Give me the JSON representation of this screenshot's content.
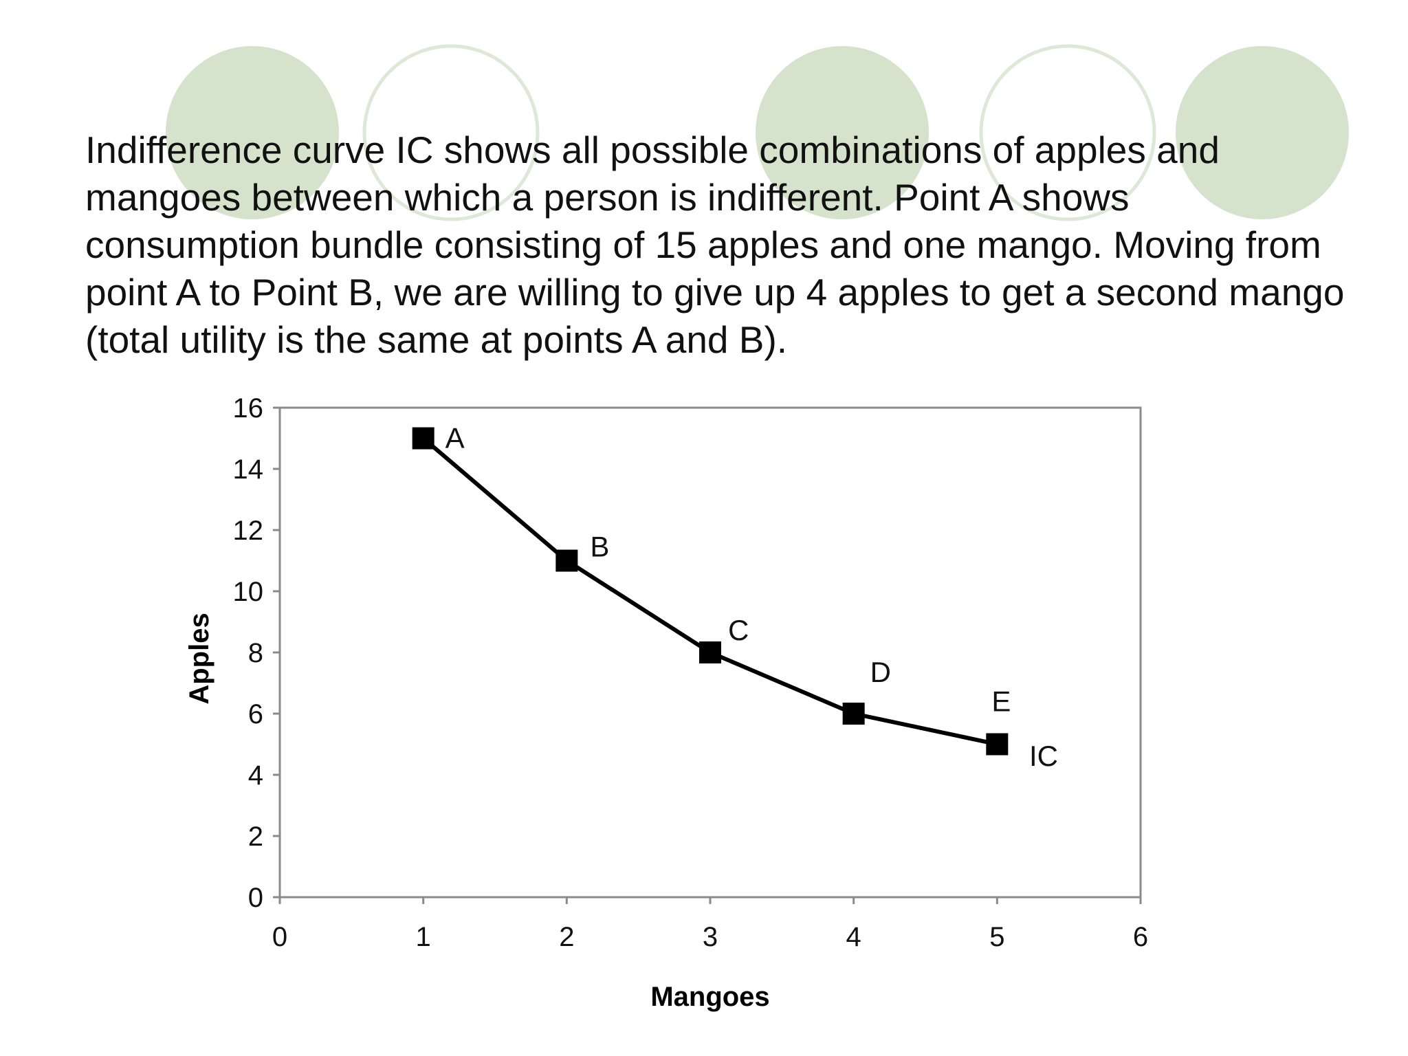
{
  "slide": {
    "body_text": "Indifference curve IC shows all possible combinations of apples and mangoes between which a person is indifferent. Point A shows consumption bundle consisting of 15 apples and one mango. Moving from point A to Point B, we are willing to give up 4 apples to get a second mango (total utility is the same at points A and B).",
    "decor_color_fill": "#d5e3cd",
    "decor_color_ring": "#dde8d6"
  },
  "chart_data": {
    "type": "line",
    "title": "",
    "xlabel": "Mangoes",
    "ylabel": "Apples",
    "xlim": [
      0,
      6
    ],
    "ylim": [
      0,
      16
    ],
    "x_ticks": [
      0,
      1,
      2,
      3,
      4,
      5,
      6
    ],
    "y_ticks": [
      0,
      2,
      4,
      6,
      8,
      10,
      12,
      14,
      16
    ],
    "grid": false,
    "legend": "none",
    "series": [
      {
        "name": "IC",
        "color": "#000000",
        "marker": "square",
        "points": [
          {
            "label": "A",
            "x": 1,
            "y": 15
          },
          {
            "label": "B",
            "x": 2,
            "y": 11
          },
          {
            "label": "C",
            "x": 3,
            "y": 8
          },
          {
            "label": "D",
            "x": 4,
            "y": 6
          },
          {
            "label": "E",
            "x": 5,
            "y": 5
          }
        ]
      }
    ],
    "annotations": [
      "IC"
    ]
  }
}
